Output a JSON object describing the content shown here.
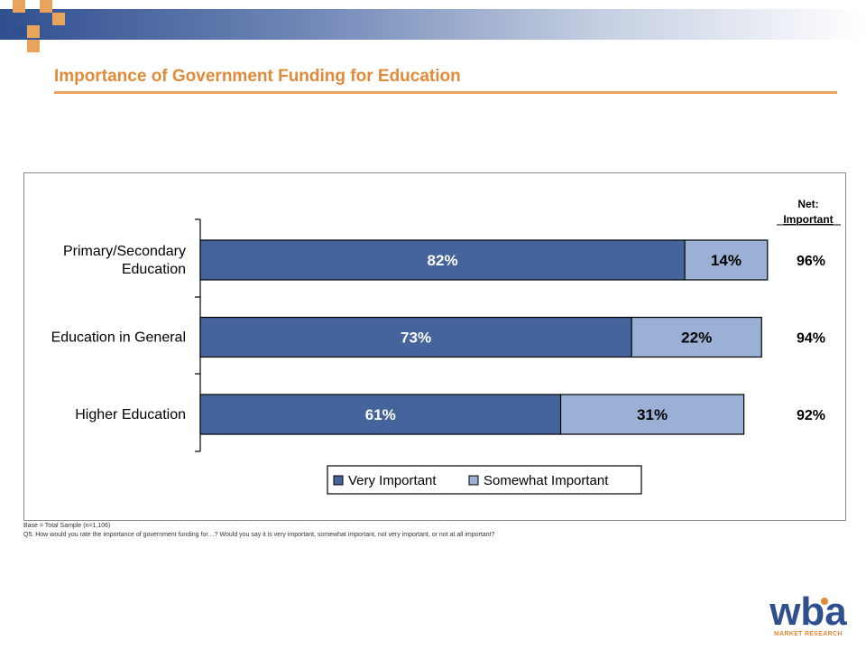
{
  "title": "Importance of Government Funding for Education",
  "net_header": {
    "line1": "Net:",
    "line2": "Important"
  },
  "footnotes": {
    "base": "Base = Total Sample (n=1,106)",
    "question": "Q5. How would you rate the importance of government funding for…? Would you say it is very important, somewhat important, not very important, or not at all important?"
  },
  "logo": {
    "mark": "wba",
    "tagline": "MARKET RESEARCH"
  },
  "colors": {
    "very_important": "#45649c",
    "somewhat_important": "#9bb0d5",
    "title": "#e08b3a",
    "accent_rule": "#e8a45c"
  },
  "chart_data": {
    "type": "bar",
    "orientation": "horizontal",
    "stacked": true,
    "categories": [
      "Primary/Secondary Education",
      "Education in General",
      "Higher Education"
    ],
    "category_lines": [
      [
        "Primary/Secondary",
        "Education"
      ],
      [
        "Education in General"
      ],
      [
        "Higher Education"
      ]
    ],
    "series": [
      {
        "name": "Very Important",
        "values": [
          82,
          73,
          61
        ],
        "labels": [
          "82%",
          "73%",
          "61%"
        ]
      },
      {
        "name": "Somewhat Important",
        "values": [
          14,
          22,
          31
        ],
        "labels": [
          "14%",
          "22%",
          "31%"
        ]
      }
    ],
    "net": {
      "values": [
        96,
        94,
        92
      ],
      "labels": [
        "96%",
        "94%",
        "92%"
      ]
    },
    "xlim": [
      0,
      100
    ],
    "grid": false,
    "legend": {
      "position": "bottom",
      "entries": [
        "Very Important",
        "Somewhat Important"
      ]
    }
  }
}
